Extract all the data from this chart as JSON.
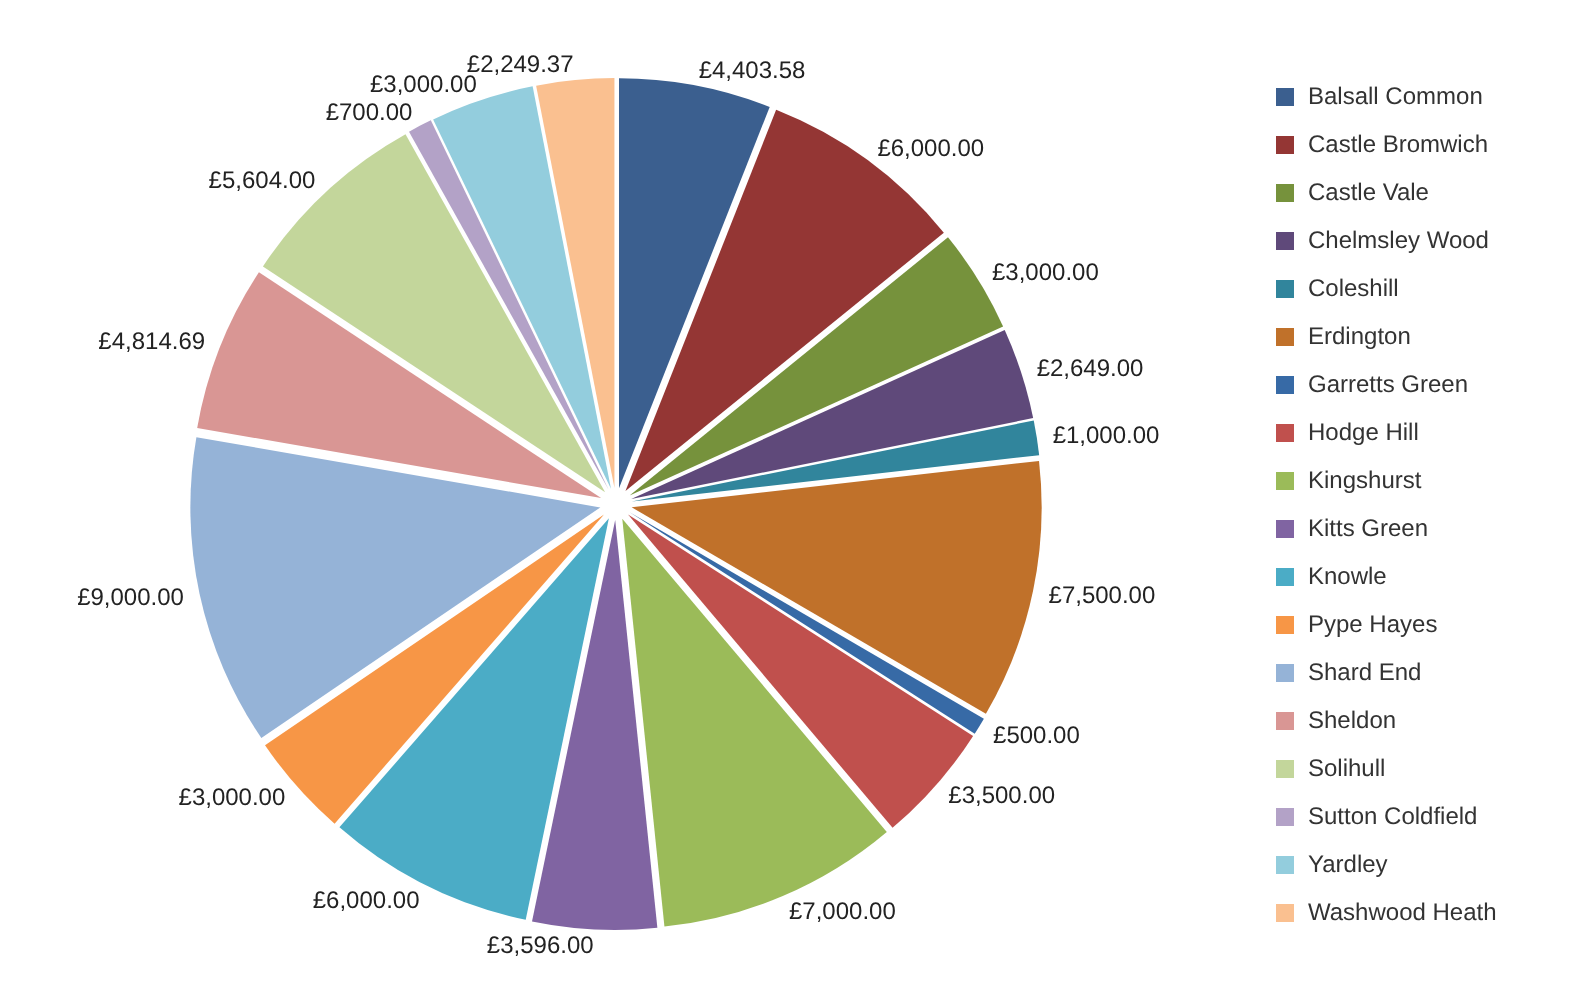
{
  "chart_data": {
    "type": "pie",
    "categories": [
      "Balsall Common",
      "Castle Bromwich",
      "Castle Vale",
      "Chelmsley Wood",
      "Coleshill",
      "Erdington",
      "Garretts Green",
      "Hodge Hill",
      "Kingshurst",
      "Kitts Green",
      "Knowle",
      "Pype Hayes",
      "Shard End",
      "Sheldon",
      "Solihull",
      "Sutton Coldfield",
      "Yardley",
      "Washwood Heath"
    ],
    "values": [
      4403.58,
      6000,
      3000,
      2649,
      1000,
      7500,
      500,
      3500,
      7000,
      3596,
      6000,
      3000,
      9000,
      4814.69,
      5604,
      700,
      3000,
      2249.37
    ],
    "value_labels": [
      "£4,403.58",
      "£6,000.00",
      "£3,000.00",
      "£2,649.00",
      "£1,000.00",
      "£7,500.00",
      "£500.00",
      "£3,500.00",
      "£7,000.00",
      "£3,596.00",
      "£6,000.00",
      "£3,000.00",
      "£9,000.00",
      "£4,814.69",
      "£5,604.00",
      "£700.00",
      "£3,000.00",
      "£2,249.37"
    ],
    "colors": [
      "#3b5f8f",
      "#943634",
      "#76923c",
      "#5f497a",
      "#31859c",
      "#c0712a",
      "#376aa6",
      "#c0504d",
      "#9bbb59",
      "#8064a2",
      "#4bacc6",
      "#f79646",
      "#95b3d7",
      "#d99694",
      "#c3d69b",
      "#b3a2c7",
      "#93cddd",
      "#fac090"
    ],
    "legend": "right"
  }
}
